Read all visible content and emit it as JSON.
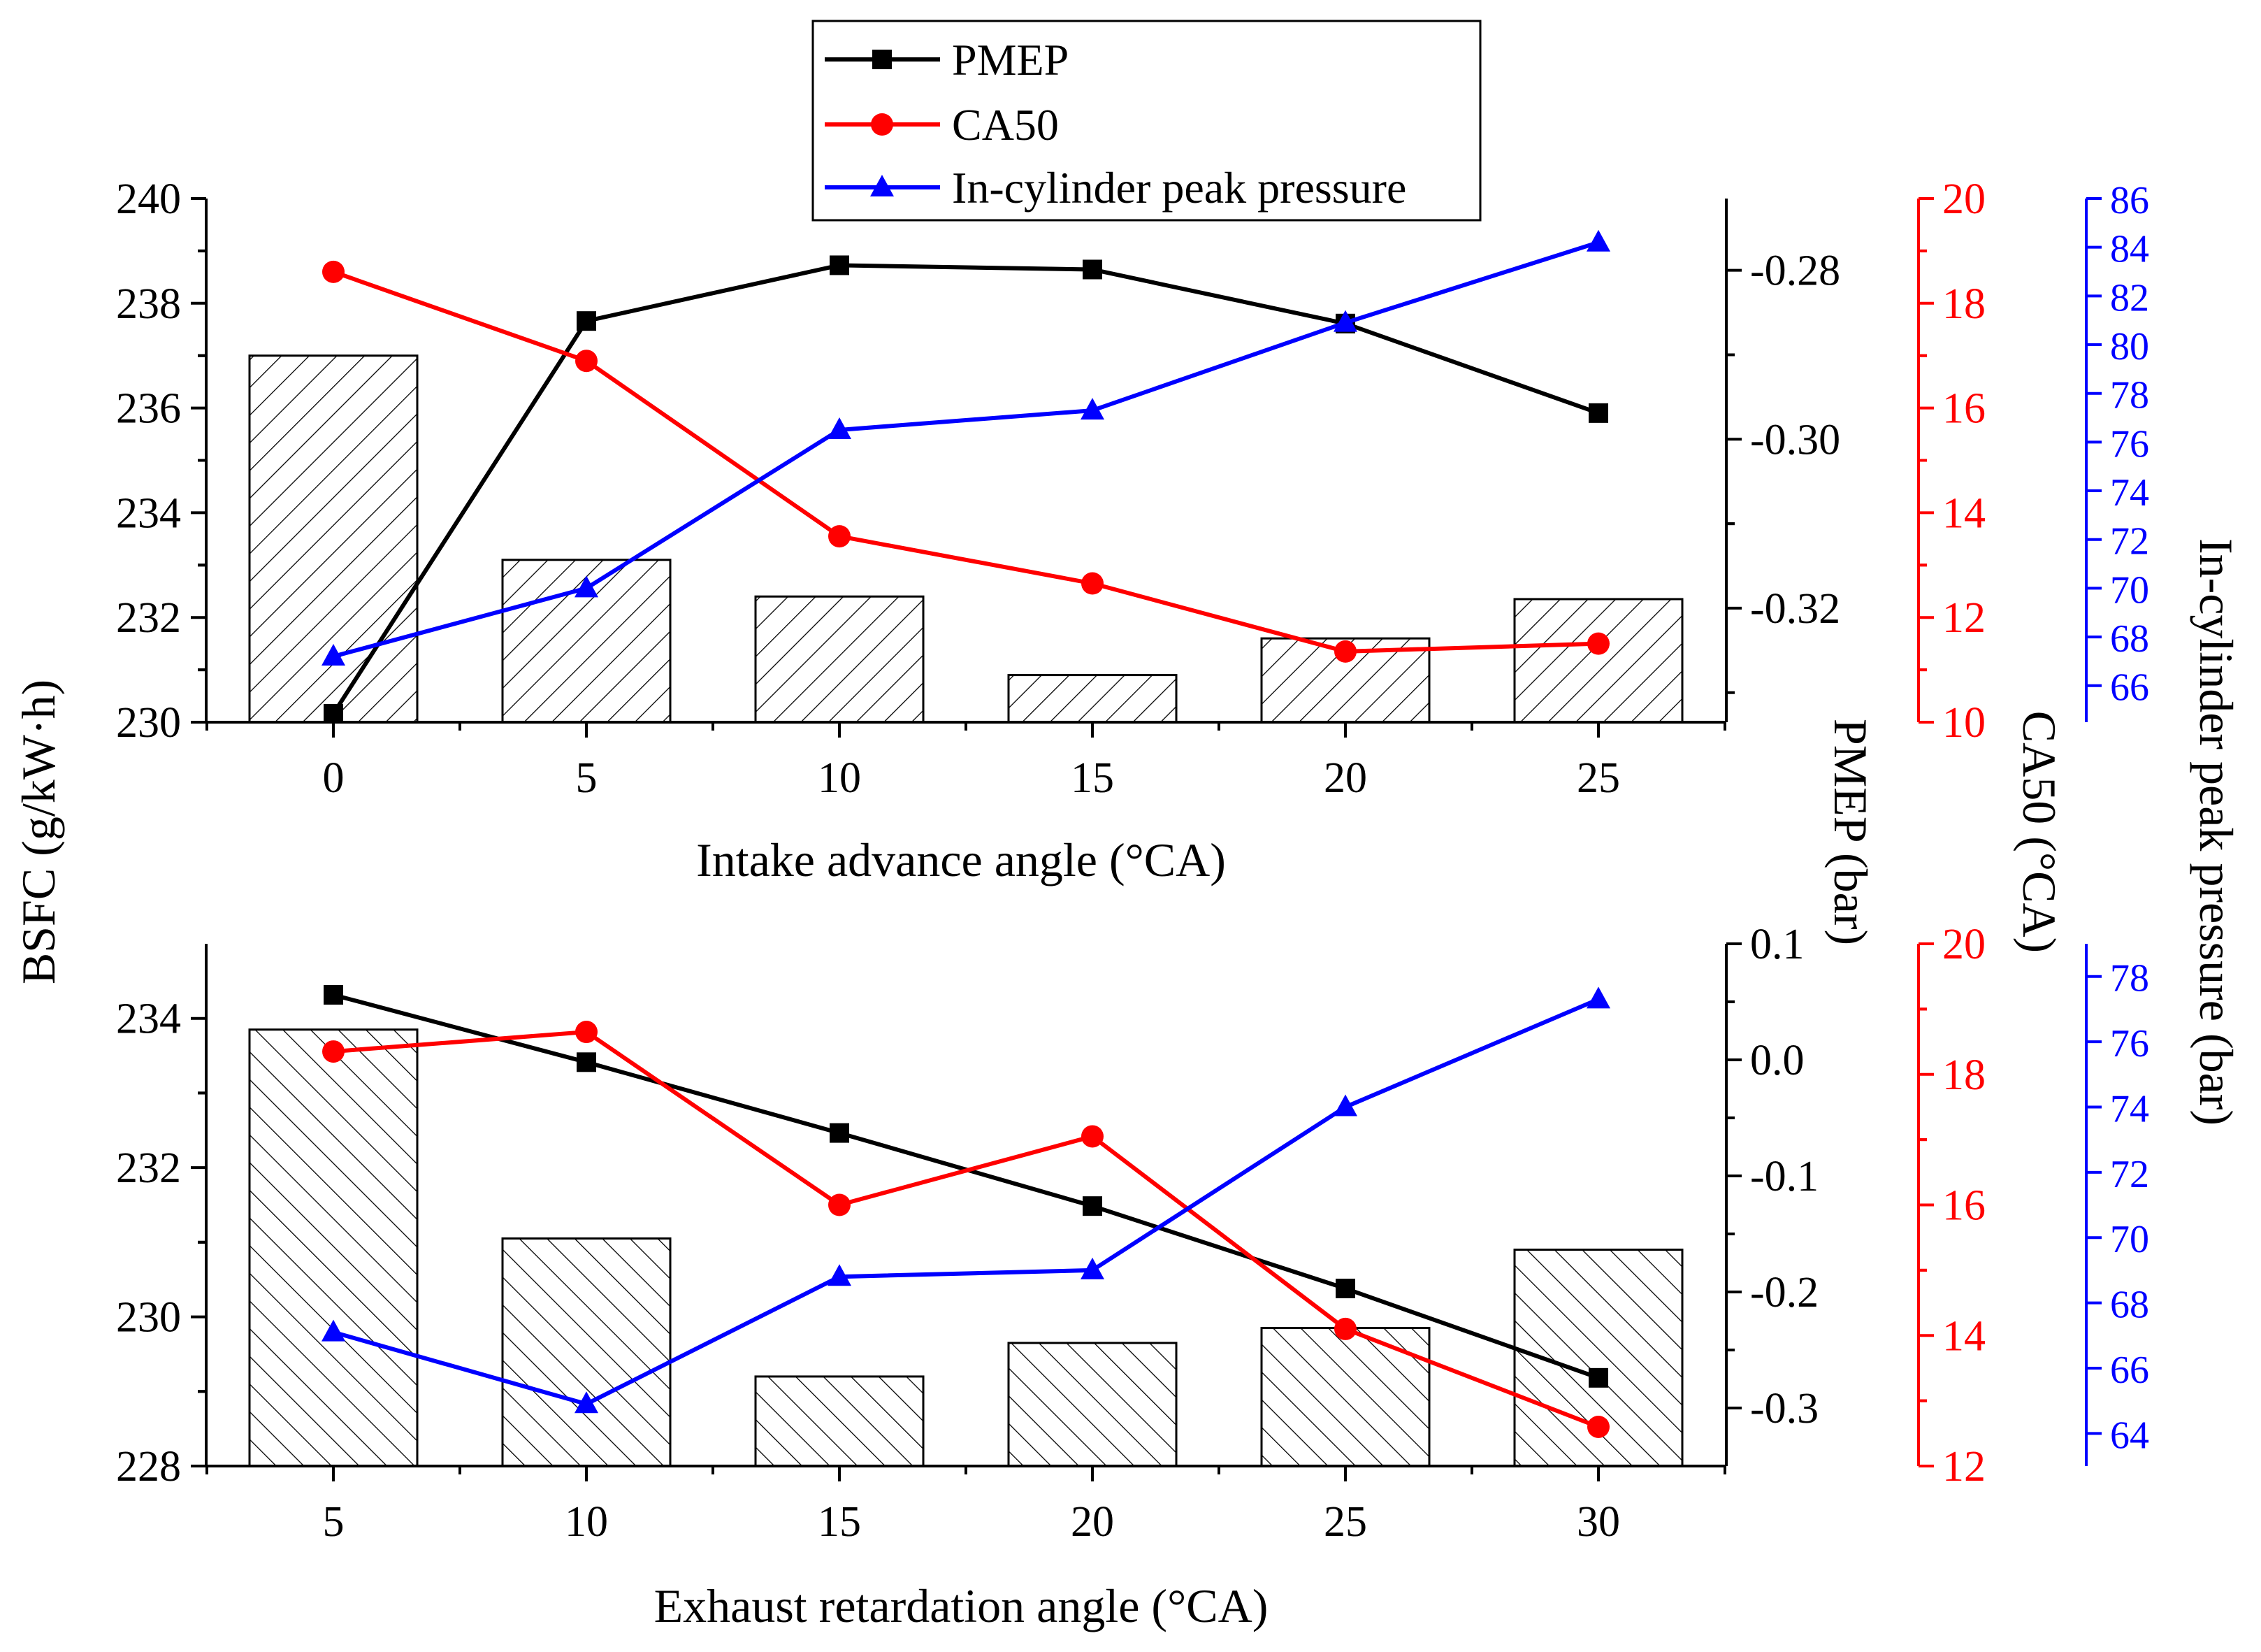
{
  "legend": {
    "items": [
      {
        "key": "pmep",
        "label": "PMEP",
        "color": "#000000",
        "marker": "square"
      },
      {
        "key": "ca50",
        "label": "CA50",
        "color": "#ff0000",
        "marker": "circle"
      },
      {
        "key": "peak",
        "label": "In-cylinder peak pressure",
        "color": "#0000ff",
        "marker": "triangle"
      }
    ]
  },
  "shared_labels": {
    "bsfc": "BSFC (g/kW·h)",
    "pmep": "PMEP (bar)",
    "ca50": "CA50 (°CA)",
    "peak": "In-cylinder peak pressure (bar)"
  },
  "colors": {
    "pmep": "#000000",
    "ca50": "#ff0000",
    "peak": "#0000ff",
    "bar_stroke": "#000000"
  },
  "chart_data": [
    {
      "type": "bar+line",
      "panel": "top",
      "xlabel": "Intake advance angle (°CA)",
      "x": [
        0,
        5,
        10,
        15,
        20,
        25
      ],
      "x_ticks": [
        "0",
        "5",
        "10",
        "15",
        "20",
        "25"
      ],
      "bar_hatch": "forward",
      "series": [
        {
          "key": "bsfc",
          "name": "BSFC",
          "axis": "bsfc",
          "type": "bar",
          "values": [
            237.0,
            233.1,
            232.4,
            230.9,
            231.6,
            232.35
          ]
        },
        {
          "key": "pmep",
          "name": "PMEP",
          "axis": "pmep",
          "type": "line",
          "values": [
            -0.3325,
            -0.286,
            -0.2794,
            -0.2799,
            -0.2863,
            -0.2969
          ]
        },
        {
          "key": "ca50",
          "name": "CA50",
          "axis": "ca50",
          "type": "line",
          "values": [
            18.6,
            16.9,
            13.55,
            12.65,
            11.35,
            11.5
          ]
        },
        {
          "key": "peak",
          "name": "In-cylinder peak pressure",
          "axis": "peak",
          "type": "line",
          "values": [
            67.2,
            70.0,
            76.5,
            77.3,
            80.9,
            84.2
          ]
        }
      ],
      "axes": {
        "bsfc": {
          "range": [
            230,
            240
          ],
          "ticks": [
            "230",
            "232",
            "234",
            "236",
            "238",
            "240"
          ]
        },
        "pmep": {
          "range": [
            -0.3335,
            -0.2715
          ],
          "ticks": [
            "-0.32",
            "-0.30",
            "-0.28"
          ],
          "tick_values": [
            -0.32,
            -0.3,
            -0.28
          ]
        },
        "ca50": {
          "range": [
            10,
            20
          ],
          "ticks": [
            "10",
            "12",
            "14",
            "16",
            "18",
            "20"
          ]
        },
        "peak": {
          "range": [
            64.5,
            86
          ],
          "ticks": [
            "66",
            "68",
            "70",
            "72",
            "74",
            "76",
            "78",
            "80",
            "82",
            "84",
            "86"
          ]
        }
      }
    },
    {
      "type": "bar+line",
      "panel": "bottom",
      "xlabel": "Exhaust retardation angle (°CA)",
      "x": [
        5,
        10,
        15,
        20,
        25,
        30
      ],
      "x_ticks": [
        "5",
        "10",
        "15",
        "20",
        "25",
        "30"
      ],
      "bar_hatch": "backward",
      "series": [
        {
          "key": "bsfc",
          "name": "BSFC",
          "axis": "bsfc",
          "type": "bar",
          "values": [
            233.85,
            231.05,
            229.2,
            229.65,
            229.85,
            230.9
          ]
        },
        {
          "key": "pmep",
          "name": "PMEP",
          "axis": "pmep",
          "type": "line",
          "values": [
            0.056,
            -0.002,
            -0.063,
            -0.126,
            -0.197,
            -0.274
          ]
        },
        {
          "key": "ca50",
          "name": "CA50",
          "axis": "ca50",
          "type": "line",
          "values": [
            18.35,
            18.65,
            16.0,
            17.05,
            14.1,
            12.6
          ]
        },
        {
          "key": "peak",
          "name": "In-cylinder peak pressure",
          "axis": "peak",
          "type": "line",
          "values": [
            67.1,
            64.9,
            68.8,
            69.0,
            74.0,
            77.3
          ]
        }
      ],
      "axes": {
        "bsfc": {
          "range": [
            228,
            235
          ],
          "ticks": [
            "228",
            "230",
            "232",
            "234"
          ]
        },
        "pmep": {
          "range": [
            -0.35,
            0.1
          ],
          "ticks": [
            "-0.3",
            "-0.2",
            "-0.1",
            "0.0",
            "0.1"
          ],
          "tick_values": [
            -0.3,
            -0.2,
            -0.1,
            0.0,
            0.1
          ]
        },
        "ca50": {
          "range": [
            12,
            20
          ],
          "ticks": [
            "12",
            "14",
            "16",
            "18",
            "20"
          ]
        },
        "peak": {
          "range": [
            63,
            79
          ],
          "ticks": [
            "64",
            "66",
            "68",
            "70",
            "72",
            "74",
            "76",
            "78"
          ]
        }
      }
    }
  ]
}
